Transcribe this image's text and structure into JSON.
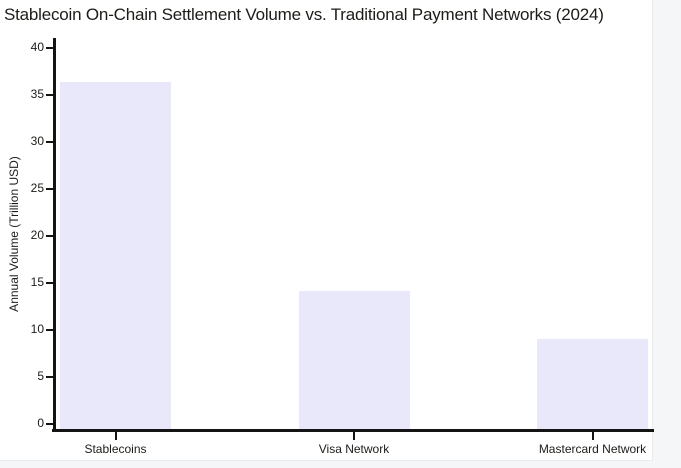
{
  "page": {
    "surround_bg": "#f5f6f8",
    "canvas_bg": "#ffffff",
    "text_color": "#1c1c18",
    "axis_color": "#141414"
  },
  "chart_data": {
    "type": "bar",
    "title": "Stablecoin On-Chain Settlement Volume vs. Traditional Payment Networks (2024)",
    "categories": [
      "Stablecoins",
      "Visa Network",
      "Mastercard Network"
    ],
    "values": [
      36.3,
      14.1,
      9.0
    ],
    "xlabel": "",
    "ylabel": "Annual Volume (Trillion USD)",
    "ylim": [
      0,
      40
    ],
    "yticks": [
      0,
      5,
      10,
      15,
      20,
      25,
      30,
      35,
      40
    ],
    "bar_color": "#e8e8fa",
    "grid": false,
    "legend": false,
    "spines": [
      "left",
      "bottom"
    ]
  }
}
